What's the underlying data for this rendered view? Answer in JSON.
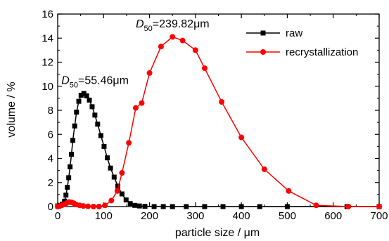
{
  "chart_data": {
    "type": "line",
    "xlabel": "particle size / μm",
    "ylabel": "volume / %",
    "xlim": [
      0,
      700
    ],
    "ylim": [
      0,
      16
    ],
    "xticks": [
      0,
      100,
      200,
      300,
      400,
      500,
      600,
      700
    ],
    "yticks": [
      0,
      2,
      4,
      6,
      8,
      10,
      12,
      14,
      16
    ],
    "grid": false,
    "legend": {
      "placement": "top-right"
    },
    "annotations": [
      {
        "pre": "D",
        "sub": "50",
        "post": "=55.46μm",
        "x": 8,
        "y": 10.2
      },
      {
        "pre": "D",
        "sub": "50",
        "post": "=239.82μm",
        "x": 170,
        "y": 14.9
      }
    ],
    "series": [
      {
        "name": "raw",
        "color": "#000000",
        "marker": "square",
        "x": [
          0,
          5,
          10,
          15,
          18,
          21,
          24,
          27,
          30,
          33,
          37,
          41,
          46,
          51,
          57,
          63,
          69,
          75,
          81,
          87,
          94,
          101,
          108,
          115,
          123,
          131,
          140,
          149,
          158,
          168,
          178,
          190,
          210,
          230,
          250,
          280,
          320,
          360,
          400,
          440,
          500,
          630,
          700
        ],
        "y": [
          0.05,
          0.1,
          0.2,
          0.45,
          0.95,
          1.6,
          2.4,
          3.3,
          4.35,
          5.5,
          6.7,
          7.85,
          8.75,
          9.25,
          9.4,
          9.2,
          8.85,
          8.3,
          7.6,
          6.85,
          5.9,
          5.0,
          4.05,
          3.2,
          2.45,
          1.7,
          1.05,
          0.55,
          0.25,
          0.1,
          0.05,
          0.02,
          0,
          0,
          0,
          0,
          0,
          0,
          0,
          0,
          0,
          0,
          0
        ]
      },
      {
        "name": "recrystallization",
        "color": "#ff0000",
        "marker": "circle",
        "x": [
          0,
          5,
          10,
          15,
          20,
          25,
          30,
          35,
          40,
          48,
          56,
          66,
          78,
          90,
          103,
          117,
          130,
          140,
          155,
          170,
          183,
          200,
          225,
          250,
          272,
          300,
          320,
          357,
          400,
          450,
          503,
          563,
          633,
          700
        ],
        "y": [
          0,
          0.05,
          0.12,
          0.2,
          0.3,
          0.38,
          0.35,
          0.28,
          0.18,
          0.1,
          0.05,
          0.02,
          0,
          0,
          0.1,
          0.5,
          1.3,
          2.8,
          5.3,
          8.2,
          8.6,
          11.1,
          13.3,
          14.1,
          13.8,
          13.0,
          11.5,
          8.7,
          5.75,
          3.1,
          1.3,
          0.1,
          0,
          0
        ]
      }
    ]
  }
}
